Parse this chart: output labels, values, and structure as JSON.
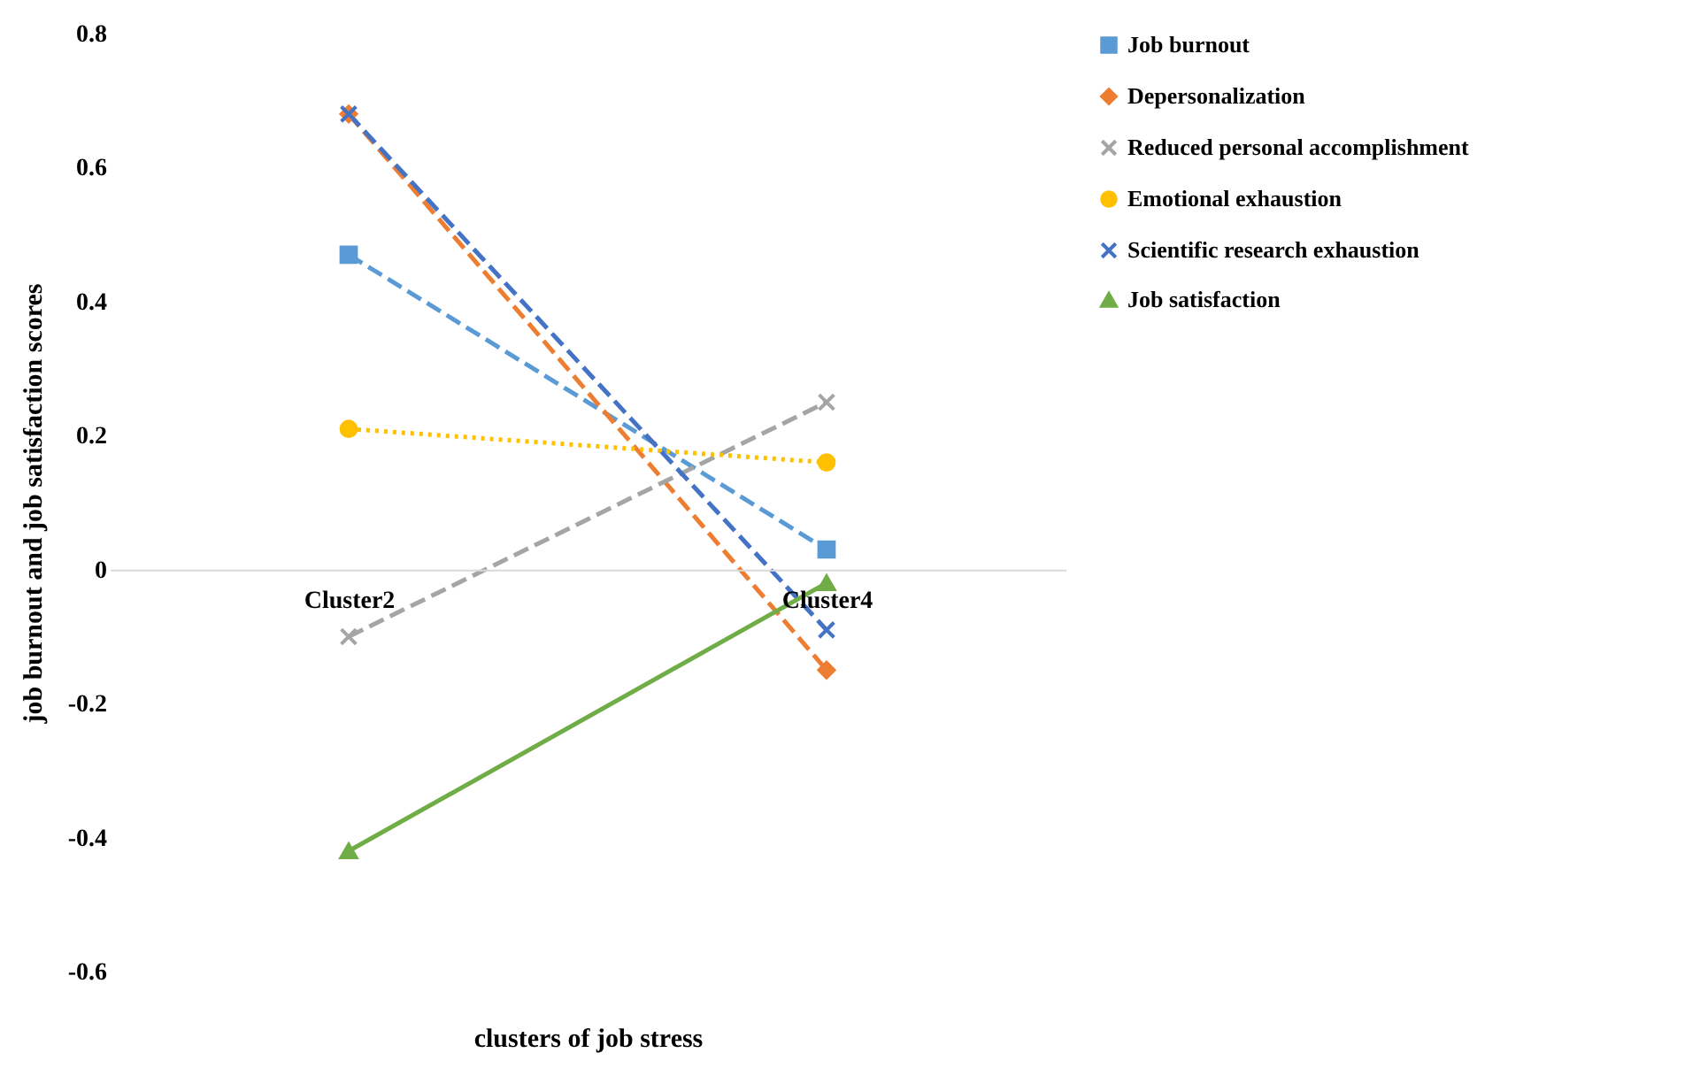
{
  "chart_data": {
    "type": "line",
    "xlabel": "clusters of job stress",
    "ylabel": "job burnout and job satisfaction scores",
    "categories": [
      "Cluster2",
      "Cluster4"
    ],
    "series": [
      {
        "name": "Job burnout",
        "color": "#5b9bd5",
        "marker": "square",
        "line_style": "dashed",
        "values": [
          0.47,
          0.03
        ]
      },
      {
        "name": "Depersonalization",
        "color": "#ed7d31",
        "marker": "diamond",
        "line_style": "dashed",
        "values": [
          0.68,
          -0.15
        ]
      },
      {
        "name": "Reduced personal accomplishment",
        "color": "#a5a5a5",
        "marker": "cross",
        "line_style": "dashed",
        "values": [
          -0.1,
          0.25
        ]
      },
      {
        "name": "Emotional exhaustion",
        "color": "#ffc000",
        "marker": "circle",
        "line_style": "dotted",
        "values": [
          0.21,
          0.16
        ]
      },
      {
        "name": "Scientific research exhaustion",
        "color": "#4472c4",
        "marker": "cross",
        "line_style": "dashed",
        "values": [
          0.68,
          -0.09
        ]
      },
      {
        "name": "Job satisfaction",
        "color": "#70ad47",
        "marker": "triangle",
        "line_style": "solid",
        "values": [
          -0.42,
          -0.02
        ]
      }
    ],
    "ylim": [
      -0.6,
      0.8
    ],
    "yticks": [
      -0.6,
      -0.4,
      -0.2,
      0,
      0.2,
      0.4,
      0.6,
      0.8
    ],
    "grid": false,
    "legend": "top right"
  }
}
